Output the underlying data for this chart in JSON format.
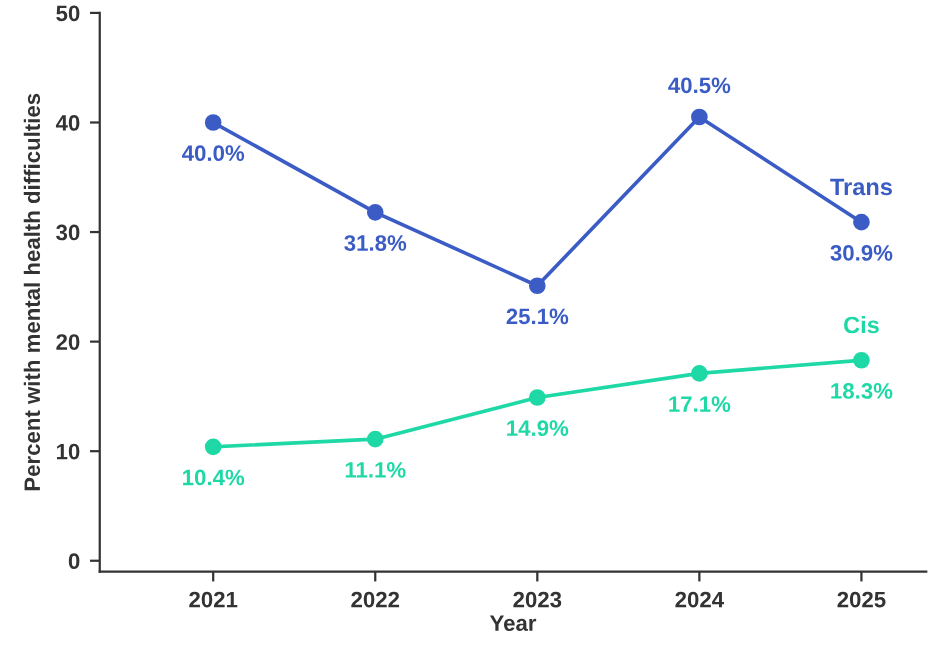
{
  "chart_data": {
    "type": "line",
    "xlabel": "Year",
    "ylabel": "Percent with mental health difficulties",
    "categories": [
      "2021",
      "2022",
      "2023",
      "2024",
      "2025"
    ],
    "series": [
      {
        "name": "Trans",
        "color": "#3b5cc4",
        "values": [
          40.0,
          31.8,
          25.1,
          40.5,
          30.9
        ],
        "value_labels": [
          "40.0%",
          "31.8%",
          "25.1%",
          "40.5%",
          "30.9%"
        ]
      },
      {
        "name": "Cis",
        "color": "#1ed8a6",
        "values": [
          10.4,
          11.1,
          14.9,
          17.1,
          18.3
        ],
        "value_labels": [
          "10.4%",
          "11.1%",
          "14.9%",
          "17.1%",
          "18.3%"
        ]
      }
    ],
    "ylim": [
      -1,
      50
    ],
    "yticks": [
      0,
      10,
      20,
      30,
      40,
      50
    ],
    "grid": false,
    "legend": false,
    "marker": "circle",
    "line_style": "solid"
  }
}
